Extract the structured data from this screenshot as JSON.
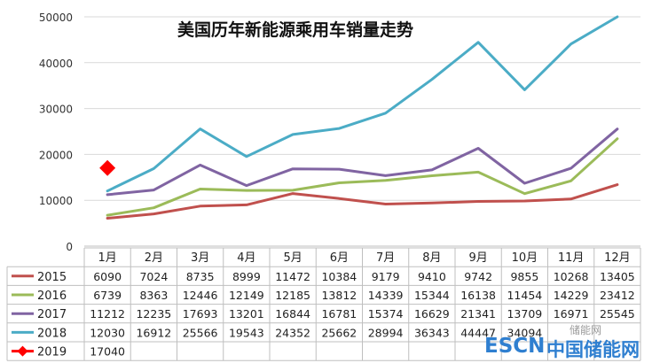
{
  "chart_data": {
    "type": "line",
    "title": "美国历年新能源乘用车销量走势",
    "categories": [
      "1月",
      "2月",
      "3月",
      "4月",
      "5月",
      "6月",
      "7月",
      "8月",
      "9月",
      "10月",
      "11月",
      "12月"
    ],
    "ylim": [
      0,
      50000
    ],
    "yticks": [
      "50000",
      "40000",
      "30000",
      "20000",
      "10000",
      "0"
    ],
    "grid": true,
    "legend": "data-table-left",
    "series": [
      {
        "name": "2015",
        "color": "#c0504d",
        "marker": "none",
        "values": [
          6090,
          7024,
          8735,
          8999,
          11472,
          10384,
          9179,
          9410,
          9742,
          9855,
          10268,
          13405
        ]
      },
      {
        "name": "2016",
        "color": "#9bbb59",
        "marker": "none",
        "values": [
          6739,
          8363,
          12446,
          12149,
          12185,
          13812,
          14339,
          15344,
          16138,
          11454,
          14229,
          23412
        ]
      },
      {
        "name": "2017",
        "color": "#8064a2",
        "marker": "none",
        "values": [
          11212,
          12235,
          17693,
          13201,
          16844,
          16781,
          15374,
          16629,
          21341,
          13709,
          16971,
          25545
        ]
      },
      {
        "name": "2018",
        "color": "#4bacc6",
        "marker": "none",
        "values": [
          12030,
          16912,
          25566,
          19543,
          24352,
          25662,
          28994,
          36343,
          44447,
          34094,
          44076,
          50000
        ]
      },
      {
        "name": "2019",
        "color": "#ff0000",
        "marker": "diamond",
        "values": [
          17040,
          null,
          null,
          null,
          null,
          null,
          null,
          null,
          null,
          null,
          null,
          null
        ]
      }
    ],
    "table_rows": [
      [
        "6090",
        "7024",
        "8735",
        "8999",
        "11472",
        "10384",
        "9179",
        "9410",
        "9742",
        "9855",
        "10268",
        "13405"
      ],
      [
        "6739",
        "8363",
        "12446",
        "12149",
        "12185",
        "13812",
        "14339",
        "15344",
        "16138",
        "11454",
        "14229",
        "23412"
      ],
      [
        "11212",
        "12235",
        "17693",
        "13201",
        "16844",
        "16781",
        "15374",
        "16629",
        "21341",
        "13709",
        "16971",
        "25545"
      ],
      [
        "12030",
        "16912",
        "25566",
        "19543",
        "24352",
        "25662",
        "28994",
        "36343",
        "44447",
        "34094",
        "",
        ""
      ],
      [
        "17040",
        "",
        "",
        "",
        "",
        "",
        "",
        "",
        "",
        "",
        "",
        ""
      ]
    ]
  },
  "watermark": {
    "logo": "ESCN",
    "site": "中国储能网",
    "small": "储能网"
  }
}
